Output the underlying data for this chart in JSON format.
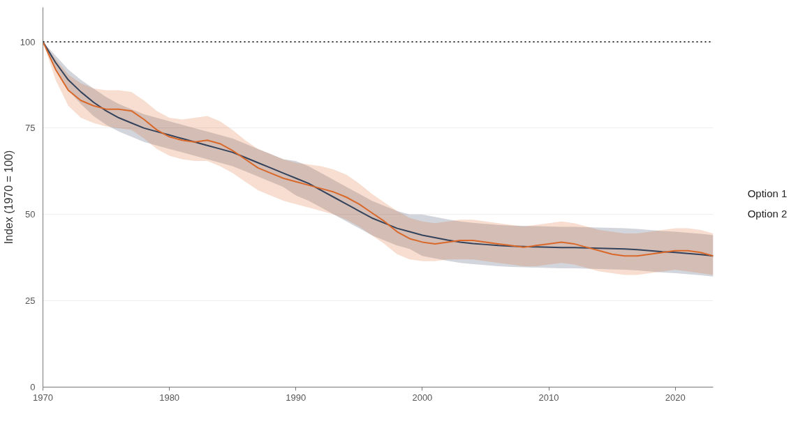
{
  "chart_data": {
    "type": "line",
    "ylabel": "Index (1970 = 100)",
    "x": [
      1970,
      1971,
      1972,
      1973,
      1974,
      1975,
      1976,
      1977,
      1978,
      1979,
      1980,
      1981,
      1982,
      1983,
      1984,
      1985,
      1986,
      1987,
      1988,
      1989,
      1990,
      1991,
      1992,
      1993,
      1994,
      1995,
      1996,
      1997,
      1998,
      1999,
      2000,
      2001,
      2002,
      2003,
      2004,
      2005,
      2006,
      2007,
      2008,
      2009,
      2010,
      2011,
      2012,
      2013,
      2014,
      2015,
      2016,
      2017,
      2018,
      2019,
      2020,
      2021,
      2022,
      2023
    ],
    "series": [
      {
        "name": "Option 1",
        "color": "#33425b",
        "values": [
          100,
          94,
          89,
          85.5,
          82.5,
          80,
          78,
          76.5,
          75,
          74,
          73,
          72,
          71,
          70,
          69,
          68,
          66.5,
          65,
          63.5,
          62,
          60.5,
          59,
          57,
          55,
          53,
          51,
          49,
          47.5,
          46,
          45,
          44,
          43.3,
          42.6,
          42,
          41.6,
          41.3,
          41,
          40.8,
          40.7,
          40.6,
          40.5,
          40.4,
          40.4,
          40.3,
          40.2,
          40.1,
          40,
          39.8,
          39.5,
          39.2,
          39,
          38.7,
          38.4,
          38
        ],
        "upper": [
          100,
          96,
          92,
          89,
          86.5,
          84,
          82,
          80.5,
          79,
          78,
          77,
          76,
          75,
          74,
          73,
          72,
          70.5,
          69,
          67.5,
          66,
          65.5,
          64,
          62,
          60,
          58,
          56,
          54,
          52.5,
          51,
          50,
          50,
          49.3,
          48.6,
          48,
          47.6,
          47.3,
          47,
          46.8,
          46.7,
          46.6,
          46.5,
          46.4,
          46.4,
          46.3,
          46.2,
          46.1,
          46,
          45.8,
          45.5,
          45.2,
          45,
          44.7,
          44.4,
          44
        ],
        "lower": [
          100,
          92,
          86,
          82,
          78.5,
          76,
          74,
          72.5,
          71,
          70,
          69,
          68,
          67,
          66,
          65,
          64,
          62.5,
          61,
          59.5,
          58,
          55.5,
          54,
          52,
          50,
          48,
          46,
          44,
          42.5,
          41,
          40,
          38,
          37.3,
          36.6,
          36,
          35.6,
          35.3,
          35,
          34.8,
          34.7,
          34.6,
          34.5,
          34.4,
          34.4,
          34.3,
          34.2,
          34.1,
          34,
          33.8,
          33.5,
          33.2,
          33,
          32.7,
          32.4,
          32
        ]
      },
      {
        "name": "Option 2",
        "color": "#d9682b",
        "values": [
          100,
          92,
          86,
          83,
          81.5,
          80.5,
          80.5,
          80,
          77.5,
          74.5,
          72.5,
          71.5,
          71,
          71.5,
          70.5,
          68.5,
          66,
          63.5,
          62,
          60.5,
          59.5,
          58.5,
          57.5,
          56.5,
          55,
          53,
          50.5,
          48,
          45,
          43,
          42,
          41.5,
          42,
          42.5,
          42.5,
          42,
          41.5,
          41,
          40.5,
          41,
          41.5,
          42,
          41.5,
          40.5,
          39.5,
          38.5,
          38,
          38,
          38.5,
          39,
          39.5,
          39.5,
          39,
          38
        ],
        "upper": [
          100,
          95,
          90.5,
          88,
          86.5,
          86,
          86,
          85.5,
          83,
          80,
          78,
          77.5,
          78,
          78.5,
          77,
          74.5,
          71.5,
          69,
          67.5,
          66,
          65,
          64.5,
          64,
          63,
          61.5,
          59,
          56,
          53.5,
          51,
          49,
          48,
          47.5,
          48,
          48.5,
          48.5,
          48,
          47.5,
          47,
          46.5,
          47,
          47.5,
          48,
          47.5,
          46.5,
          45.5,
          45,
          44.5,
          44.5,
          45,
          45.5,
          46,
          46,
          45.5,
          44.5
        ],
        "lower": [
          100,
          89,
          81.5,
          78,
          76.5,
          75.5,
          75,
          74.5,
          72,
          69,
          67,
          66,
          65.5,
          65.5,
          64,
          62,
          59.5,
          57,
          55.5,
          54,
          53,
          52,
          51,
          50,
          48.5,
          46.5,
          44,
          41.5,
          38.5,
          37,
          36.5,
          36.5,
          37,
          37,
          37,
          36.5,
          36,
          35.5,
          35,
          35,
          35.5,
          36,
          35.5,
          34.5,
          33.5,
          33,
          32.5,
          32.5,
          33,
          33.5,
          34,
          33.5,
          33,
          32.5
        ]
      }
    ],
    "xlim": [
      1970,
      2023
    ],
    "ylim": [
      0,
      110
    ],
    "xticks": [
      1970,
      1980,
      1990,
      2000,
      2010,
      2020
    ],
    "yticks": [
      0,
      25,
      50,
      75,
      100
    ],
    "grid": "y",
    "legend": "right",
    "ref_lines": [
      {
        "axis": "y",
        "value": 100,
        "color": "#333333",
        "line_style": "dotted"
      }
    ]
  }
}
